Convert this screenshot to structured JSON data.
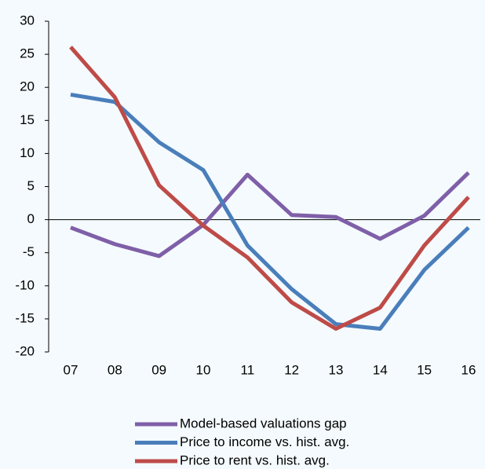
{
  "chart_data": {
    "type": "line",
    "categories": [
      "07",
      "08",
      "09",
      "10",
      "11",
      "12",
      "13",
      "14",
      "15",
      "16"
    ],
    "series": [
      {
        "name": "Model-based valuations gap",
        "color": "#7f5fa8",
        "values": [
          -1.2,
          -3.7,
          -5.5,
          -0.8,
          6.8,
          0.7,
          0.4,
          -2.9,
          0.6,
          7.1
        ]
      },
      {
        "name": "Price to income vs. hist. avg.",
        "color": "#4a7ebb",
        "values": [
          18.9,
          17.8,
          11.7,
          7.5,
          -3.9,
          -10.5,
          -15.8,
          -16.5,
          -7.6,
          -1.2
        ]
      },
      {
        "name": "Price to rent vs. hist. avg.",
        "color": "#be4b48",
        "values": [
          26.1,
          18.5,
          5.2,
          -0.9,
          -5.7,
          -12.5,
          -16.5,
          -13.3,
          -3.9,
          3.4
        ]
      }
    ],
    "ylim": [
      -20,
      30
    ],
    "yticks": [
      -20,
      -15,
      -10,
      -5,
      0,
      5,
      10,
      15,
      20,
      25,
      30
    ],
    "legend": "bottom"
  }
}
